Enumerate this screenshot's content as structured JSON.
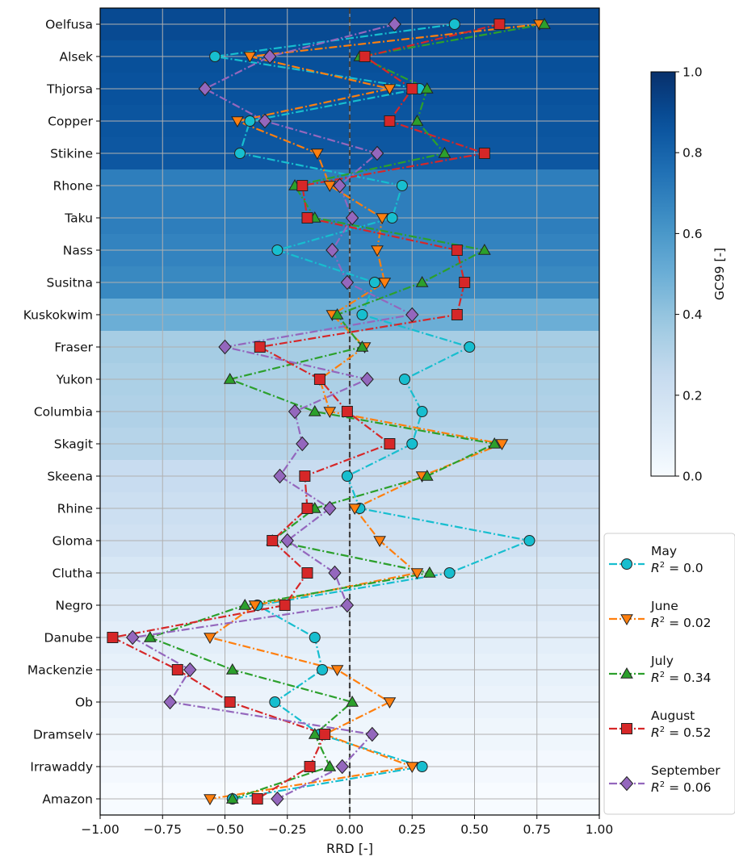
{
  "chart_data": {
    "type": "scatter",
    "title": "",
    "xlabel": "RRD [-]",
    "ylabel": "",
    "xlim": [
      -1.0,
      1.0
    ],
    "x_ticks": [
      "−1.00",
      "−0.75",
      "−0.50",
      "−0.25",
      "0.00",
      "0.25",
      "0.50",
      "0.75",
      "1.00"
    ],
    "x_tick_values": [
      -1.0,
      -0.75,
      -0.5,
      -0.25,
      0.0,
      0.25,
      0.5,
      0.75,
      1.0
    ],
    "grid": true,
    "zero_line": "dashed vertical at x = 0",
    "categories": [
      "Oelfusa",
      "Alsek",
      "Thjorsa",
      "Copper",
      "Stikine",
      "Rhone",
      "Taku",
      "Nass",
      "Susitna",
      "Kuskokwim",
      "Fraser",
      "Yukon",
      "Columbia",
      "Skagit",
      "Skeena",
      "Rhine",
      "Gloma",
      "Clutha",
      "Negro",
      "Danube",
      "Mackenzie",
      "Ob",
      "Dramselv",
      "Irrawaddy",
      "Amazon"
    ],
    "background_gc99": [
      0.9,
      0.88,
      0.87,
      0.86,
      0.85,
      0.7,
      0.7,
      0.68,
      0.66,
      0.5,
      0.35,
      0.33,
      0.32,
      0.3,
      0.24,
      0.22,
      0.2,
      0.16,
      0.13,
      0.1,
      0.08,
      0.06,
      0.04,
      0.02,
      0.0
    ],
    "colorbar": {
      "label": "GC99 [-]",
      "ticks": [
        "0.0",
        "0.2",
        "0.4",
        "0.6",
        "0.8",
        "1.0"
      ],
      "tick_values": [
        0.0,
        0.2,
        0.4,
        0.6,
        0.8,
        1.0
      ],
      "range": [
        0.0,
        1.0
      ],
      "colormap": "Blues"
    },
    "legend_placement": "lower right, outside",
    "series": [
      {
        "name": "May",
        "r2_label": "= 0.0",
        "color": "#17becf",
        "marker": "circle",
        "linestyle": "dash-dot",
        "values": [
          0.42,
          -0.54,
          0.28,
          -0.4,
          -0.44,
          0.21,
          0.17,
          -0.29,
          0.1,
          0.05,
          0.48,
          0.22,
          0.29,
          0.25,
          -0.01,
          0.04,
          0.72,
          0.4,
          -0.37,
          -0.14,
          -0.11,
          -0.3,
          -0.12,
          0.29,
          -0.47
        ]
      },
      {
        "name": "June",
        "r2_label": "= 0.02",
        "color": "#ff7f0e",
        "marker": "triangle-down",
        "linestyle": "dash-dot",
        "values": [
          0.76,
          -0.4,
          0.16,
          -0.45,
          -0.13,
          -0.08,
          0.13,
          0.11,
          0.14,
          -0.07,
          0.06,
          -0.12,
          -0.08,
          0.61,
          0.29,
          0.02,
          0.12,
          0.27,
          -0.38,
          -0.56,
          -0.05,
          0.16,
          -0.1,
          0.25,
          -0.56
        ]
      },
      {
        "name": "July",
        "r2_label": "= 0.34",
        "color": "#2ca02c",
        "marker": "triangle-up",
        "linestyle": "dash-dot",
        "values": [
          0.78,
          0.04,
          0.31,
          0.27,
          0.38,
          -0.22,
          -0.14,
          0.54,
          0.29,
          -0.05,
          0.05,
          -0.48,
          -0.14,
          0.58,
          0.31,
          -0.14,
          -0.31,
          0.32,
          -0.42,
          -0.8,
          -0.47,
          0.01,
          -0.14,
          -0.08,
          -0.47
        ]
      },
      {
        "name": "August",
        "r2_label": "= 0.52",
        "color": "#d62728",
        "marker": "square",
        "linestyle": "dash-dot",
        "values": [
          0.6,
          0.06,
          0.25,
          0.16,
          0.54,
          -0.19,
          -0.17,
          0.43,
          0.46,
          0.43,
          -0.36,
          -0.12,
          -0.01,
          0.16,
          -0.18,
          -0.17,
          -0.31,
          -0.17,
          -0.26,
          -0.95,
          -0.69,
          -0.48,
          -0.1,
          -0.16,
          -0.37
        ]
      },
      {
        "name": "September",
        "r2_label": "= 0.06",
        "color": "#9467bd",
        "marker": "diamond",
        "linestyle": "dash-dot",
        "values": [
          0.18,
          -0.32,
          -0.58,
          -0.34,
          0.11,
          -0.04,
          0.01,
          -0.07,
          -0.01,
          0.25,
          -0.5,
          0.07,
          -0.22,
          -0.19,
          -0.28,
          -0.08,
          -0.25,
          -0.06,
          -0.01,
          -0.87,
          -0.64,
          -0.72,
          0.09,
          -0.03,
          -0.29
        ]
      }
    ]
  }
}
